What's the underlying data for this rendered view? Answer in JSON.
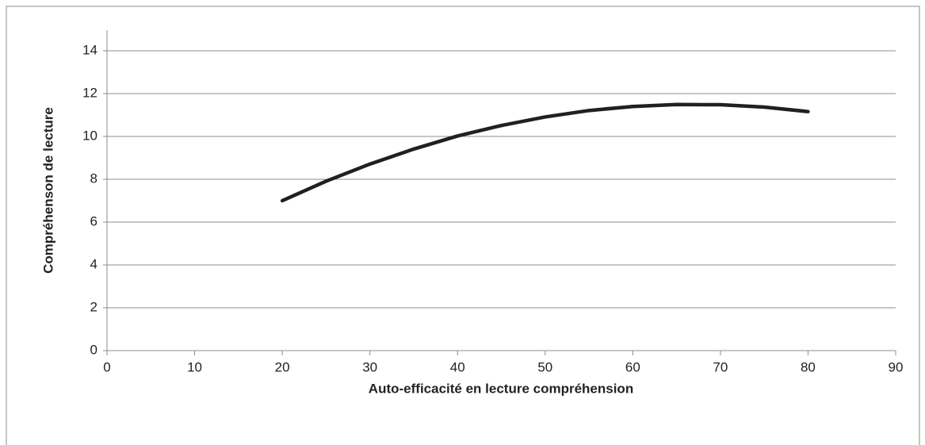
{
  "chart_data": {
    "type": "line",
    "xlabel": "Auto-efficacité en lecture compréhension",
    "ylabel": "Compréhenson de lecture",
    "x": [
      20,
      25,
      30,
      35,
      40,
      45,
      50,
      55,
      60,
      65,
      70,
      75,
      80
    ],
    "series": [
      {
        "color": "#231f20",
        "values": [
          7.0,
          7.91,
          8.71,
          9.41,
          10.02,
          10.51,
          10.91,
          11.21,
          11.4,
          11.49,
          11.48,
          11.37,
          11.16
        ]
      }
    ],
    "xlim": [
      0,
      90
    ],
    "xticks": [
      0,
      10,
      20,
      30,
      40,
      50,
      60,
      70,
      80,
      90
    ],
    "ylim": [
      0,
      14
    ],
    "yticks": [
      0,
      2,
      4,
      6,
      8,
      10,
      12,
      14
    ],
    "grid": true
  }
}
